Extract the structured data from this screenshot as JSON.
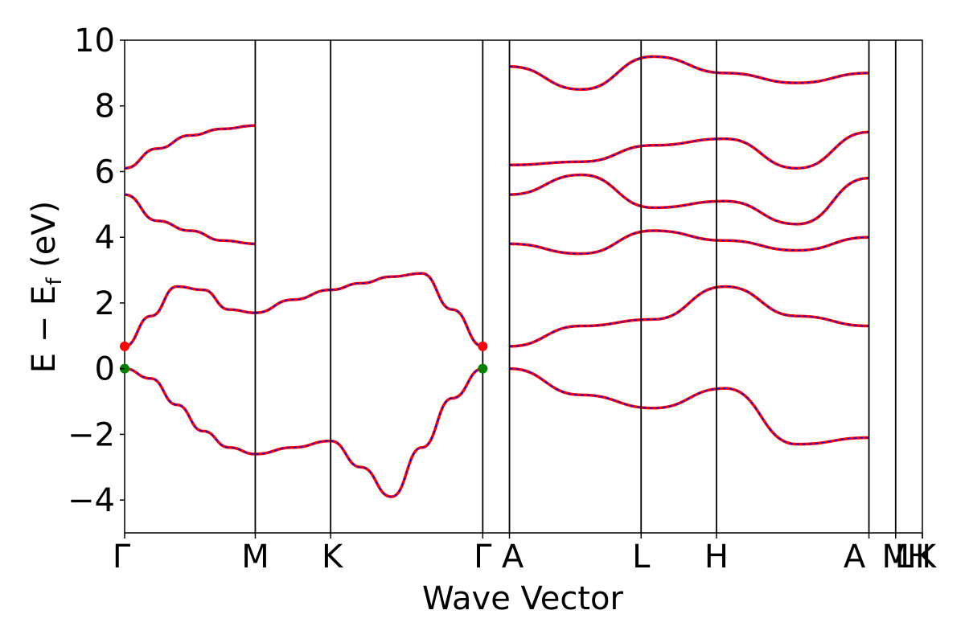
{
  "chart_data": {
    "type": "line",
    "title": "",
    "xlabel": "Wave Vector",
    "ylabel": "E − E_f (eV)",
    "ylabel_main": "E − E",
    "ylabel_sub": "f",
    "ylabel_tail": " (eV)",
    "ylim": [
      -5,
      10
    ],
    "y_ticks": [
      10,
      8,
      6,
      4,
      2,
      0,
      -2,
      -4
    ],
    "y_tick_labels": [
      "10",
      "8",
      "6",
      "4",
      "2",
      "0",
      "−2",
      "−4"
    ],
    "x_ticks": [
      {
        "label": "Γ",
        "k": 0.0
      },
      {
        "label": "M",
        "k": 0.1418
      },
      {
        "label": "K",
        "k": 0.2236
      },
      {
        "label": "Γ",
        "k": 0.3887
      },
      {
        "label": "A",
        "k": 0.4177
      },
      {
        "label": "L",
        "k": 0.5606
      },
      {
        "label": "H",
        "k": 0.6424
      },
      {
        "label": "A|",
        "k": 0.8079
      },
      {
        "label": "L|",
        "k": 0.8369
      },
      {
        "label": "M",
        "k": 0.8369
      },
      {
        "label": "H|",
        "k": 0.8659
      },
      {
        "label": "K",
        "k": 0.8659
      }
    ],
    "x_tick_labels_printed": [
      "Γ",
      "M",
      "K",
      "Γ",
      "A",
      "L",
      "H",
      "A",
      "M",
      "L",
      "H",
      "K"
    ],
    "xlim": [
      0,
      0.8659
    ],
    "band_colors": {
      "line": "#ff0000",
      "dash": "#0000ff"
    },
    "special_points": [
      {
        "k": 0.0,
        "energy": 0.68,
        "color": "#ff0000",
        "role": "cbm"
      },
      {
        "k": 0.0,
        "energy": 0.0,
        "color": "#008000",
        "role": "vbm"
      },
      {
        "k": 0.3887,
        "energy": 0.68,
        "color": "#ff0000",
        "role": "cbm"
      },
      {
        "k": 0.3887,
        "energy": 0.0,
        "color": "#008000",
        "role": "vbm"
      }
    ],
    "bands": [
      {
        "segment": 0,
        "values": [
          0.0,
          -0.3,
          -1.1,
          -1.9,
          -2.4,
          -2.6
        ]
      },
      {
        "segment": 1,
        "values": [
          -2.6,
          -2.4,
          -2.2
        ]
      },
      {
        "segment": 2,
        "values": [
          -2.2,
          -3.0,
          -3.9,
          -2.4,
          -0.9,
          0.0
        ]
      },
      {
        "segment": 0,
        "values": [
          0.68,
          1.6,
          2.5,
          2.4,
          1.8,
          1.7
        ]
      },
      {
        "segment": 1,
        "values": [
          1.7,
          2.1,
          2.4
        ]
      },
      {
        "segment": 2,
        "values": [
          2.4,
          2.6,
          2.8,
          2.9,
          1.8,
          0.68
        ]
      },
      {
        "segment": 0,
        "values": [
          5.3,
          4.5,
          4.2,
          3.9,
          3.8
        ]
      },
      {
        "segment": 0,
        "values": [
          6.1,
          6.7,
          7.1,
          7.3,
          7.4
        ]
      },
      {
        "segment": 3,
        "values": [
          0.68,
          1.3,
          1.5,
          2.5,
          1.6,
          1.3
        ]
      },
      {
        "segment": 3,
        "values": [
          0.0,
          -0.8,
          -1.2,
          -0.6,
          -2.3,
          -2.1
        ]
      },
      {
        "segment": 3,
        "values": [
          3.8,
          3.5,
          4.2,
          3.9,
          3.6,
          4.0
        ]
      },
      {
        "segment": 3,
        "values": [
          5.3,
          5.9,
          4.9,
          5.1,
          4.4,
          5.8
        ]
      },
      {
        "segment": 3,
        "values": [
          6.2,
          6.3,
          6.8,
          7.0,
          6.1,
          7.2
        ]
      },
      {
        "segment": 3,
        "values": [
          9.2,
          8.5,
          9.5,
          9.0,
          8.7,
          9.0
        ]
      }
    ]
  }
}
